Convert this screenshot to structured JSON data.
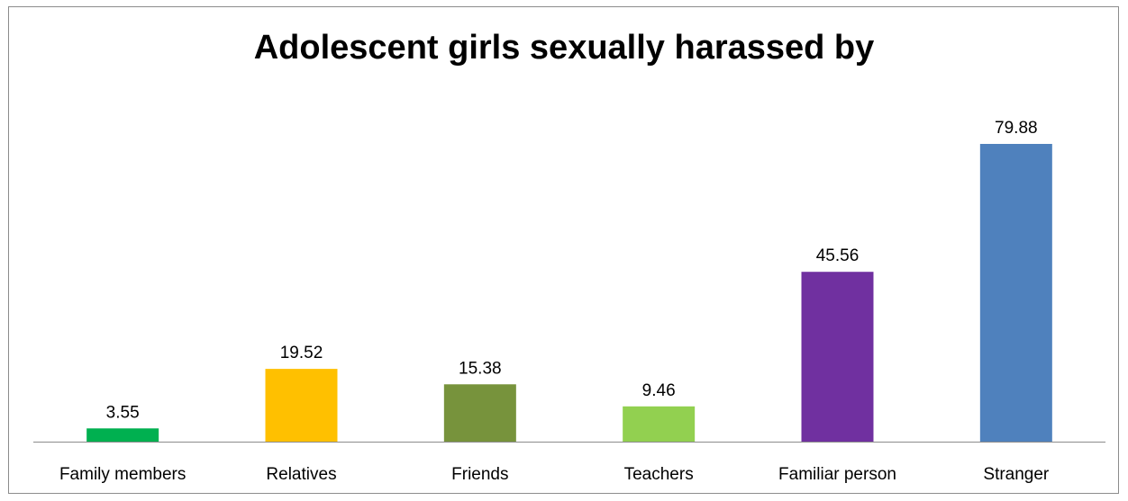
{
  "chart_data": {
    "type": "bar",
    "title": "Adolescent girls sexually harassed by",
    "categories": [
      "Family members",
      "Relatives",
      "Friends",
      "Teachers",
      "Familiar person",
      "Stranger"
    ],
    "values": [
      3.55,
      19.52,
      15.38,
      9.46,
      45.56,
      79.88
    ],
    "value_labels": [
      "3.55",
      "19.52",
      "15.38",
      "9.46",
      "45.56",
      "79.88"
    ],
    "colors": [
      "#00b050",
      "#ffc000",
      "#77933c",
      "#92d050",
      "#7030a0",
      "#4f81bd"
    ],
    "xlabel": "",
    "ylabel": "",
    "ylim": [
      0,
      80
    ],
    "grid": false,
    "legend": "none",
    "data_labels": true
  }
}
